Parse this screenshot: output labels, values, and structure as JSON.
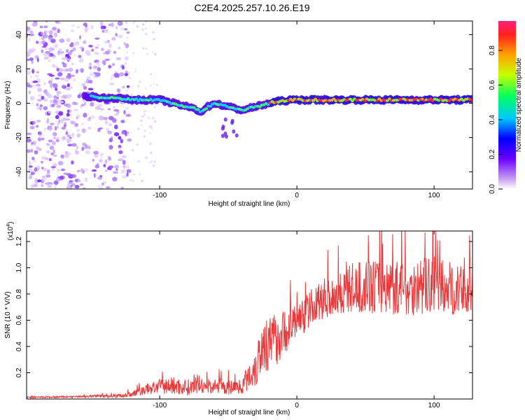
{
  "title": "C2E4.2025.257.10.26.E19",
  "colors": {
    "snr_line": "#e8393b",
    "axis": "#000000",
    "background": "#ffffff"
  },
  "chart_data": [
    {
      "type": "heatmap",
      "name": "spectrogram",
      "xlabel": "Height of straight line (km)",
      "ylabel": "Frequency (Hz)",
      "xlim": [
        -197,
        128
      ],
      "ylim": [
        -50,
        48
      ],
      "xticks": [
        -100,
        0,
        100
      ],
      "yticks": [
        -40,
        -20,
        0,
        20,
        40
      ],
      "ridge": {
        "x": [
          -150,
          -140,
          -130,
          -120,
          -110,
          -100,
          -90,
          -80,
          -75,
          -70,
          -65,
          -60,
          -55,
          -50,
          -45,
          -40,
          -35,
          -30,
          -25,
          -20,
          -15,
          -10,
          0,
          10,
          20,
          40,
          60,
          80,
          100,
          120,
          128
        ],
        "y": [
          4,
          3,
          3,
          2,
          2,
          2,
          0,
          -2,
          -3,
          -5,
          -2,
          0,
          -1,
          -2,
          -3,
          -4,
          -3,
          -2,
          -1,
          0,
          1,
          1.5,
          2,
          2,
          2,
          2,
          2,
          2,
          2,
          2,
          2
        ]
      },
      "colorbar": {
        "label": "Normalized spectral amplitude",
        "ticks": [
          "0.0",
          "0.2",
          "0.4",
          "0.6",
          "0.8"
        ],
        "range": [
          0,
          0.97
        ]
      }
    },
    {
      "type": "line",
      "name": "snr",
      "xlabel": "Height of straight line (km)",
      "ylabel": "SNR (10 * V/V)",
      "multiplier_label": "(x10",
      "multiplier_exponent": "4",
      "multiplier_close": ")",
      "xlim": [
        -197,
        128
      ],
      "ylim": [
        0,
        1.28
      ],
      "xticks": [
        -100,
        0,
        100
      ],
      "yticks": [
        0.2,
        0.4,
        0.6,
        0.8,
        1.0,
        1.2
      ],
      "envelope": {
        "x": [
          -197,
          -160,
          -130,
          -120,
          -110,
          -100,
          -90,
          -80,
          -70,
          -60,
          -50,
          -40,
          -30,
          -25,
          -20,
          -15,
          -10,
          -5,
          0,
          5,
          10,
          20,
          30,
          40,
          60,
          80,
          100,
          128
        ],
        "base": [
          0.01,
          0.015,
          0.02,
          0.03,
          0.06,
          0.08,
          0.08,
          0.07,
          0.08,
          0.08,
          0.07,
          0.08,
          0.2,
          0.35,
          0.35,
          0.4,
          0.45,
          0.5,
          0.55,
          0.6,
          0.65,
          0.72,
          0.75,
          0.78,
          0.8,
          0.78,
          0.8,
          0.75
        ],
        "amp": [
          0.01,
          0.01,
          0.02,
          0.03,
          0.06,
          0.08,
          0.1,
          0.09,
          0.08,
          0.08,
          0.08,
          0.08,
          0.25,
          0.3,
          0.3,
          0.3,
          0.25,
          0.22,
          0.2,
          0.2,
          0.2,
          0.22,
          0.25,
          0.28,
          0.3,
          0.3,
          0.32,
          0.25
        ]
      }
    }
  ]
}
